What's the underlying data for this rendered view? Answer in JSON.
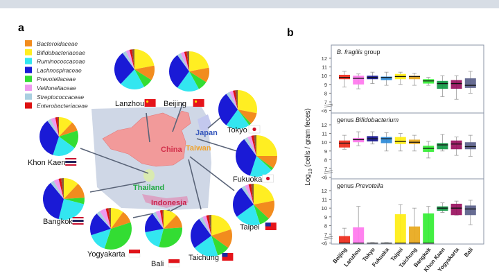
{
  "panel_a": {
    "letter": "a",
    "legend": [
      {
        "label": "Bacteroidaceae",
        "color": "#f28c1e"
      },
      {
        "label": "Bifidobacteriaceae",
        "color": "#ffee22"
      },
      {
        "label": "Ruminococcaceae",
        "color": "#33e6f0"
      },
      {
        "label": "Lachnospiraceae",
        "color": "#1a1ad6"
      },
      {
        "label": "Prevotellaceae",
        "color": "#33dd33"
      },
      {
        "label": "Veillonellaceae",
        "color": "#ee99ee"
      },
      {
        "label": "Streptococcaceae",
        "color": "#a9cfe0"
      },
      {
        "label": "Enterobacteriaceae",
        "color": "#dd1111"
      }
    ],
    "pie_order": [
      "Bifidobacteriaceae",
      "Bacteroidaceae",
      "Prevotellaceae",
      "Ruminococcaceae",
      "Lachnospiraceae",
      "Streptococcaceae",
      "Veillonellaceae",
      "Enterobacteriaceae",
      "Other"
    ],
    "other_color": "#8a5a3a",
    "countries": [
      {
        "label": "China",
        "color": "#d22f4a"
      },
      {
        "label": "Taiwan",
        "color": "#f0a22a"
      },
      {
        "label": "Japan",
        "color": "#3355bb"
      },
      {
        "label": "Thailand",
        "color": "#22aa44"
      },
      {
        "label": "Indonesia",
        "color": "#c8204a"
      }
    ],
    "cities": [
      {
        "label": "Lanzhou",
        "flag": "china",
        "fractions": [
          0.22,
          0.12,
          0.08,
          0.2,
          0.28,
          0.03,
          0.03,
          0.02,
          0.02
        ]
      },
      {
        "label": "Beijing",
        "flag": "china",
        "fractions": [
          0.22,
          0.12,
          0.08,
          0.18,
          0.3,
          0.03,
          0.03,
          0.02,
          0.02
        ]
      },
      {
        "label": "Tokyo",
        "flag": "japan",
        "fractions": [
          0.28,
          0.1,
          0.02,
          0.2,
          0.3,
          0.03,
          0.03,
          0.02,
          0.02
        ]
      },
      {
        "label": "Fukuoka",
        "flag": "japan",
        "fractions": [
          0.25,
          0.1,
          0.02,
          0.18,
          0.35,
          0.03,
          0.03,
          0.02,
          0.02
        ]
      },
      {
        "label": "Taipei",
        "flag": "taiwan",
        "fractions": [
          0.22,
          0.15,
          0.08,
          0.2,
          0.25,
          0.03,
          0.03,
          0.02,
          0.02
        ]
      },
      {
        "label": "Taichung",
        "flag": "taiwan",
        "fractions": [
          0.2,
          0.15,
          0.1,
          0.2,
          0.25,
          0.03,
          0.03,
          0.02,
          0.02
        ]
      },
      {
        "label": "Bali",
        "flag": "indonesia",
        "fractions": [
          0.12,
          0.12,
          0.3,
          0.18,
          0.18,
          0.03,
          0.04,
          0.02,
          0.01
        ]
      },
      {
        "label": "Yogyakarta",
        "flag": "indonesia",
        "fractions": [
          0.1,
          0.1,
          0.35,
          0.15,
          0.18,
          0.03,
          0.05,
          0.02,
          0.02
        ]
      },
      {
        "label": "Bangkok",
        "flag": "thailand",
        "fractions": [
          0.12,
          0.12,
          0.05,
          0.25,
          0.35,
          0.03,
          0.04,
          0.02,
          0.02
        ]
      },
      {
        "label": "Khon Kaen",
        "flag": "thailand",
        "fractions": [
          0.12,
          0.08,
          0.15,
          0.2,
          0.35,
          0.03,
          0.04,
          0.02,
          0.01
        ]
      }
    ]
  },
  "chart_data": {
    "type": "boxplot",
    "letter": "b",
    "ylabel": "Log10 (cells / gram feces)",
    "ylabel_main": "Log",
    "ylabel_sub": "10",
    "ylabel_rest": " (cells / gram feces)",
    "yticks": [
      "12",
      "11",
      "10",
      "9",
      "8",
      "7",
      "<6"
    ],
    "ylim": [
      6,
      12.8
    ],
    "categories": [
      "Beijing",
      "Lanzhou",
      "Tokyo",
      "Fukuoka",
      "Taipei",
      "Taichung",
      "Bangkok",
      "Khon Kaen",
      "Yogyakarta",
      "Bali"
    ],
    "colors": [
      "#ee2a1a",
      "#ff77ee",
      "#10108c",
      "#2b8ad8",
      "#ffee11",
      "#e8a81a",
      "#33ee33",
      "#119944",
      "#99105e",
      "#5a5f8a"
    ],
    "panels": [
      {
        "title_prefix": "",
        "title_italic": "B. fragilis",
        "title_suffix": " group",
        "boxes": [
          [
            8.7,
            9.6,
            9.8,
            10.1,
            10.5
          ],
          [
            8.5,
            9.0,
            9.7,
            10.0,
            10.2
          ],
          [
            9.1,
            9.6,
            9.8,
            10.0,
            10.4
          ],
          [
            8.9,
            9.5,
            9.8,
            9.9,
            10.4
          ],
          [
            9.0,
            9.6,
            9.9,
            10.2,
            10.4
          ],
          [
            8.9,
            9.6,
            9.9,
            10.0,
            10.3
          ],
          [
            8.9,
            9.1,
            9.4,
            9.6,
            9.8
          ],
          [
            7.6,
            8.5,
            9.1,
            9.4,
            10.0
          ],
          [
            7.3,
            8.5,
            9.1,
            9.5,
            10.0
          ],
          [
            8.0,
            8.6,
            8.9,
            9.7,
            10.5
          ]
        ]
      },
      {
        "title_prefix": "genus ",
        "title_italic": "Bifidobacterium",
        "title_suffix": "",
        "boxes": [
          [
            9.2,
            9.4,
            9.9,
            10.2,
            10.8
          ],
          [
            9.6,
            10.0,
            10.3,
            10.5,
            11.2
          ],
          [
            9.8,
            10.1,
            10.4,
            10.7,
            11.2
          ],
          [
            9.0,
            9.9,
            10.4,
            10.6,
            11.1
          ],
          [
            9.0,
            9.8,
            10.1,
            10.6,
            11.0
          ],
          [
            9.0,
            9.8,
            10.0,
            10.3,
            10.8
          ],
          [
            8.2,
            8.9,
            9.3,
            9.6,
            10.1
          ],
          [
            9.0,
            9.2,
            9.7,
            9.9,
            10.9
          ],
          [
            8.5,
            9.2,
            9.8,
            10.2,
            10.6
          ],
          [
            8.4,
            9.2,
            9.5,
            10.0,
            10.8
          ]
        ]
      },
      {
        "title_prefix": "genus ",
        "title_italic": "Prevotella",
        "title_suffix": "",
        "boxes": [
          [
            6,
            6,
            6,
            6.8,
            7.7
          ],
          [
            6,
            6,
            6,
            7.8,
            10.2
          ],
          [
            6,
            6,
            6,
            6.05,
            6.05
          ],
          [
            6,
            6,
            6,
            6.05,
            6.05
          ],
          [
            6,
            6,
            6,
            9.3,
            10.4
          ],
          [
            6,
            6,
            6,
            7.9,
            10.0
          ],
          [
            6,
            6,
            6,
            9.4,
            10.2
          ],
          [
            9.5,
            9.7,
            10.0,
            10.2,
            10.6
          ],
          [
            9.2,
            9.2,
            10.0,
            10.5,
            10.8
          ],
          [
            8.1,
            9.2,
            9.9,
            10.3,
            10.9
          ]
        ]
      }
    ]
  }
}
